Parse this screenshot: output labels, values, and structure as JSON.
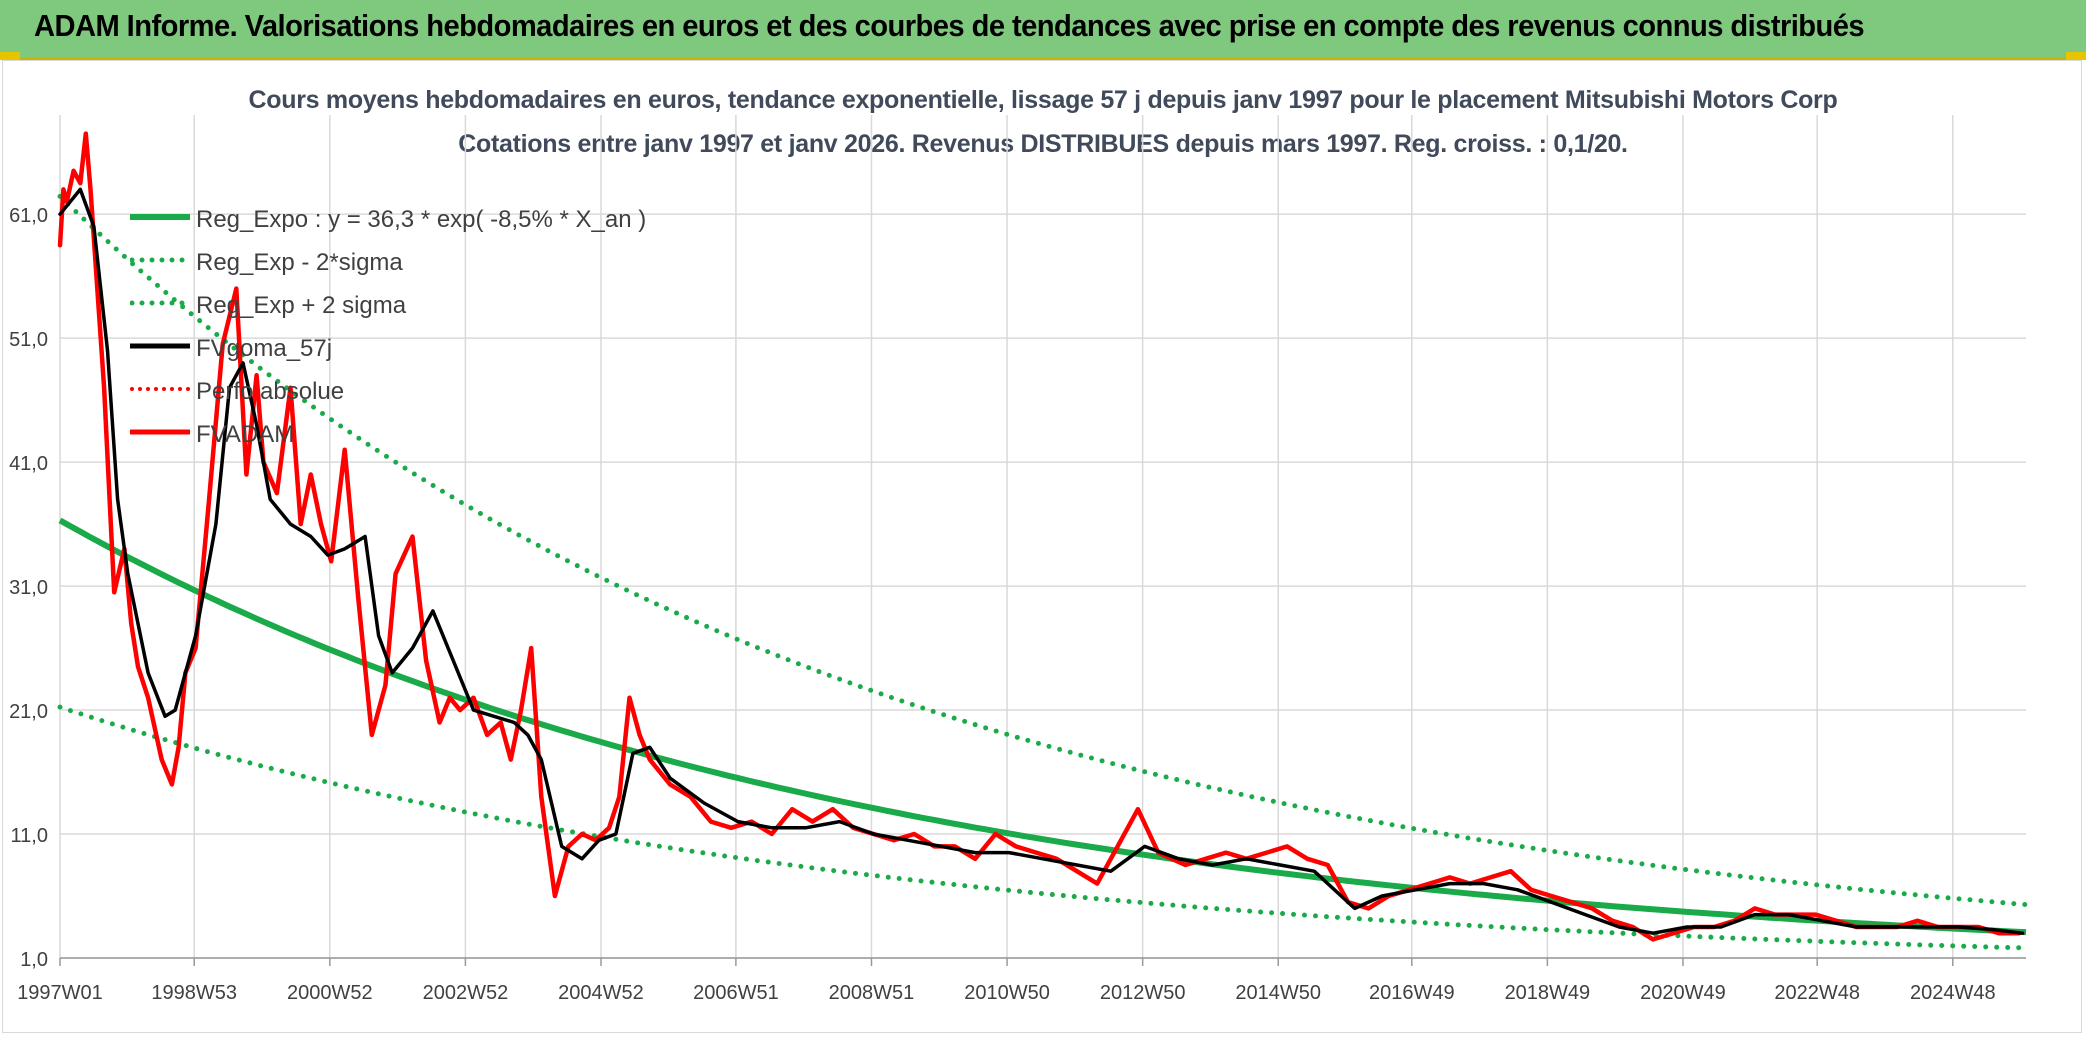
{
  "banner": {
    "title": "ADAM Informe. Valorisations hebdomadaires en euros et des courbes de tendances avec prise en compte des revenus connus distribués"
  },
  "colors": {
    "banner_bg": "#7fc97f",
    "trend_green": "#1aaa4a",
    "smooth_black": "#000000",
    "fvadam_red": "#ff0000",
    "grid": "#d9d9d9"
  },
  "chart_data": {
    "type": "line",
    "title_line1": "Cours moyens hebdomadaires en euros, tendance exponentielle, lissage 57 j depuis janv 1997 pour le placement Mitsubishi Motors Corp",
    "title_line2": "Cotations entre janv 1997 et janv 2026. Revenus DISTRIBUES depuis mars 1997. Reg. croiss. : 0,1/20.",
    "xlabel": "",
    "ylabel": "",
    "x_range": [
      1997.0,
      2026.0
    ],
    "ylim": [
      1.0,
      69.0
    ],
    "y_ticks": [
      1.0,
      11.0,
      21.0,
      31.0,
      41.0,
      51.0,
      61.0
    ],
    "y_tick_labels": [
      "1,0",
      "11,0",
      "21,0",
      "31,0",
      "41,0",
      "51,0",
      "61,0"
    ],
    "x_ticks": [
      1997.0,
      1998.98,
      2000.98,
      2002.98,
      2004.98,
      2006.97,
      2008.97,
      2010.97,
      2012.97,
      2014.97,
      2016.94,
      2018.94,
      2020.94,
      2022.92,
      2024.92
    ],
    "x_tick_labels": [
      "1997W01",
      "1998W53",
      "2000W52",
      "2002W52",
      "2004W52",
      "2006W51",
      "2008W51",
      "2010W50",
      "2012W50",
      "2014W50",
      "2016W49",
      "2018W49",
      "2020W49",
      "2022W48",
      "2024W48"
    ],
    "grid": true,
    "legend": [
      "Reg_Expo : y = 36,3 * exp( -8,5% *  X_an )",
      "Reg_Exp - 2*sigma",
      "Reg_Exp + 2 sigma",
      "FVgoma_57j",
      "Perfo absolue",
      "FVADAM"
    ],
    "legend_position": "top-left",
    "regression": {
      "a": 36.3,
      "rate": -0.085,
      "lower_factor": 0.585,
      "upper_factor": 1.72
    },
    "series": [
      {
        "name": "FVADAM",
        "style": "solid-red",
        "x": [
          1997.0,
          1997.05,
          1997.1,
          1997.2,
          1997.3,
          1997.38,
          1997.45,
          1997.55,
          1997.65,
          1997.8,
          1997.95,
          1998.05,
          1998.15,
          1998.3,
          1998.5,
          1998.65,
          1998.75,
          1998.85,
          1999.0,
          1999.2,
          1999.4,
          1999.6,
          1999.75,
          1999.9,
          2000.0,
          2000.2,
          2000.4,
          2000.55,
          2000.7,
          2000.85,
          2001.0,
          2001.2,
          2001.4,
          2001.6,
          2001.8,
          2001.95,
          2002.2,
          2002.4,
          2002.6,
          2002.75,
          2002.9,
          2003.1,
          2003.3,
          2003.5,
          2003.65,
          2003.8,
          2003.95,
          2004.1,
          2004.3,
          2004.5,
          2004.7,
          2004.9,
          2005.0,
          2005.1,
          2005.25,
          2005.4,
          2005.55,
          2005.7,
          2006.0,
          2006.3,
          2006.6,
          2006.9,
          2007.2,
          2007.5,
          2007.8,
          2008.1,
          2008.4,
          2008.7,
          2009.0,
          2009.3,
          2009.6,
          2009.9,
          2010.2,
          2010.5,
          2010.8,
          2011.1,
          2011.4,
          2011.7,
          2012.0,
          2012.3,
          2012.6,
          2012.9,
          2013.2,
          2013.4,
          2013.6,
          2013.9,
          2014.2,
          2014.5,
          2014.8,
          2015.1,
          2015.4,
          2015.7,
          2016.0,
          2016.3,
          2016.6,
          2016.9,
          2017.2,
          2017.5,
          2017.8,
          2018.1,
          2018.4,
          2018.7,
          2019.0,
          2019.3,
          2019.6,
          2019.9,
          2020.2,
          2020.5,
          2020.8,
          2021.1,
          2021.4,
          2021.7,
          2022.0,
          2022.3,
          2022.6,
          2022.9,
          2023.2,
          2023.5,
          2023.8,
          2024.1,
          2024.4,
          2024.7,
          2025.0,
          2025.3,
          2025.6,
          2025.9
        ],
        "values": [
          58.5,
          63.0,
          62.0,
          64.5,
          63.5,
          67.5,
          63.0,
          55.0,
          47.0,
          30.5,
          34.0,
          28.0,
          24.5,
          22.0,
          17.0,
          15.0,
          18.0,
          24.0,
          26.0,
          38.0,
          50.5,
          55.0,
          40.0,
          48.0,
          41.0,
          38.5,
          47.0,
          36.0,
          40.0,
          36.0,
          33.0,
          42.0,
          30.0,
          19.0,
          23.0,
          32.0,
          35.0,
          25.0,
          20.0,
          22.0,
          21.0,
          22.0,
          19.0,
          20.0,
          17.0,
          21.0,
          26.0,
          14.0,
          6.0,
          10.0,
          11.0,
          10.5,
          11.0,
          11.5,
          14.0,
          22.0,
          19.0,
          17.0,
          15.0,
          14.0,
          12.0,
          11.5,
          12.0,
          11.0,
          13.0,
          12.0,
          13.0,
          11.5,
          11.0,
          10.5,
          11.0,
          10.0,
          10.0,
          9.0,
          11.0,
          10.0,
          9.5,
          9.0,
          8.0,
          7.0,
          10.0,
          13.0,
          9.5,
          9.0,
          8.5,
          9.0,
          9.5,
          9.0,
          9.5,
          10.0,
          9.0,
          8.5,
          5.5,
          5.0,
          6.0,
          6.5,
          7.0,
          7.5,
          7.0,
          7.5,
          8.0,
          6.5,
          6.0,
          5.5,
          5.0,
          4.0,
          3.5,
          2.5,
          3.0,
          3.5,
          3.5,
          4.0,
          5.0,
          4.5,
          4.5,
          4.5,
          4.0,
          3.5,
          3.5,
          3.5,
          4.0,
          3.5,
          3.5,
          3.5,
          3.0,
          3.0
        ]
      },
      {
        "name": "FVgoma_57j",
        "style": "solid-black",
        "x": [
          1997.0,
          1997.3,
          1997.5,
          1997.7,
          1997.85,
          1998.0,
          1998.3,
          1998.55,
          1998.7,
          1998.85,
          1999.0,
          1999.3,
          1999.5,
          1999.7,
          1999.9,
          2000.1,
          2000.4,
          2000.7,
          2000.95,
          2001.2,
          2001.5,
          2001.7,
          2001.9,
          2002.2,
          2002.5,
          2002.8,
          2003.1,
          2003.4,
          2003.7,
          2003.9,
          2004.1,
          2004.4,
          2004.7,
          2004.95,
          2005.2,
          2005.45,
          2005.7,
          2006.0,
          2006.5,
          2007.0,
          2007.5,
          2008.0,
          2008.5,
          2009.0,
          2009.5,
          2010.0,
          2010.5,
          2011.0,
          2011.5,
          2012.0,
          2012.5,
          2013.0,
          2013.5,
          2014.0,
          2014.5,
          2015.0,
          2015.5,
          2015.8,
          2016.1,
          2016.5,
          2017.0,
          2017.5,
          2018.0,
          2018.5,
          2019.0,
          2019.5,
          2020.0,
          2020.5,
          2021.0,
          2021.5,
          2022.0,
          2022.5,
          2023.0,
          2023.5,
          2024.0,
          2024.5,
          2025.0,
          2025.5,
          2025.95
        ],
        "values": [
          61.0,
          63.0,
          60.0,
          50.0,
          38.0,
          32.0,
          24.0,
          20.5,
          21.0,
          24.0,
          27.0,
          36.0,
          47.0,
          49.0,
          44.0,
          38.0,
          36.0,
          35.0,
          33.5,
          34.0,
          35.0,
          27.0,
          24.0,
          26.0,
          29.0,
          25.0,
          21.0,
          20.5,
          20.0,
          19.0,
          17.0,
          10.0,
          9.0,
          10.5,
          11.0,
          17.5,
          18.0,
          15.5,
          13.5,
          12.0,
          11.5,
          11.5,
          12.0,
          11.0,
          10.5,
          10.0,
          9.5,
          9.5,
          9.0,
          8.5,
          8.0,
          10.0,
          9.0,
          8.5,
          9.0,
          8.5,
          8.0,
          6.5,
          5.0,
          6.0,
          6.5,
          7.0,
          7.0,
          6.5,
          5.5,
          4.5,
          3.5,
          3.0,
          3.5,
          3.5,
          4.5,
          4.5,
          4.0,
          3.5,
          3.5,
          3.5,
          3.5,
          3.3,
          3.0
        ]
      }
    ]
  }
}
